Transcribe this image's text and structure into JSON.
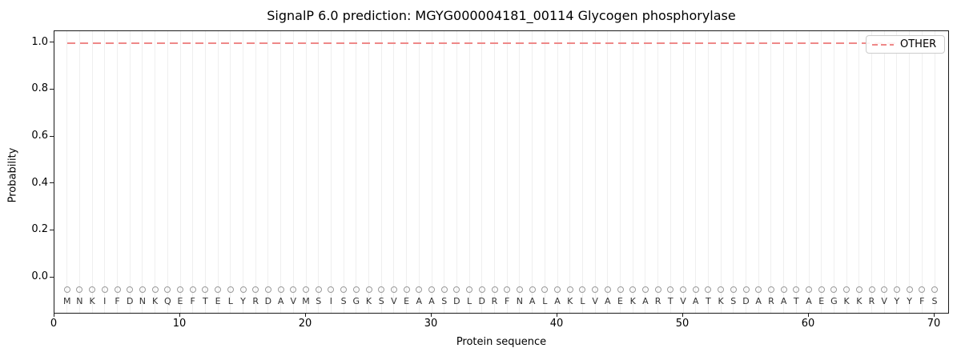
{
  "figure": {
    "title": "SignalP 6.0 prediction: MGYG000004181_00114 Glycogen phosphorylase",
    "xlabel": "Protein sequence",
    "ylabel": "Probability",
    "legend": {
      "label": "OTHER",
      "position": "upper right"
    }
  },
  "chart_data": {
    "type": "line",
    "title": "SignalP 6.0 prediction: MGYG000004181_00114 Glycogen phosphorylase",
    "xlabel": "Protein sequence",
    "ylabel": "Probability",
    "xlim": [
      0,
      71.2
    ],
    "ylim": [
      -0.16,
      1.05
    ],
    "x_ticks": [
      "0",
      "10",
      "20",
      "30",
      "40",
      "50",
      "60",
      "70"
    ],
    "y_ticks": [
      "1.0",
      "0.8",
      "0.6",
      "0.4",
      "0.2",
      "0.0"
    ],
    "grid": "vertical gridline at each residue position, no horizontal grid",
    "legend_position": "upper right",
    "series": [
      {
        "name": "OTHER",
        "linestyle": "dashed",
        "color": "#ee8888",
        "x_range": [
          1,
          70
        ],
        "y_constant": 1.0,
        "note": "flat dashed line, probability 1.0 for all 70 residues"
      }
    ],
    "sequence": "MNKIFDNKQEFTELYRDAVMSISGKSVEAASDLDRFNALAKLVAEKARTVATKSDARATAEGKKRVYYFS",
    "sequence_length": 70,
    "residue_markers": {
      "symbol": "open-circle",
      "y": -0.05,
      "color": "#9a9a9a"
    }
  },
  "colors": {
    "other_line": "#ee8888",
    "gridline": "#efefef",
    "marker_outline": "#9a9a9a",
    "residue_letter": "#333333",
    "axis": "#1a1a1a",
    "legend_border": "#cccccc",
    "background": "#ffffff"
  }
}
